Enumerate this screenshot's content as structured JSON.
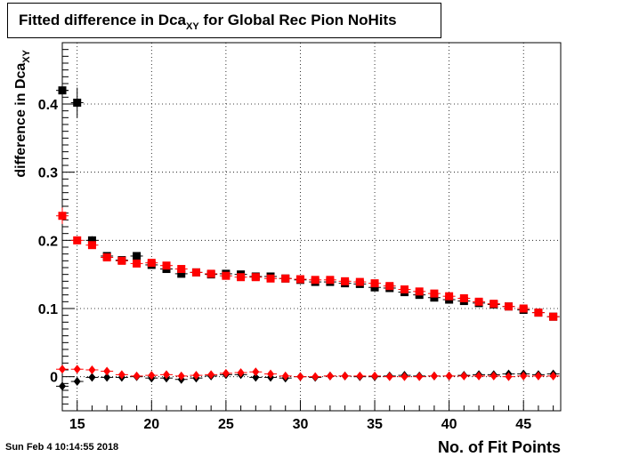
{
  "title": {
    "main": "Fitted difference in Dca",
    "sub": "XY",
    "rest": " for Global Rec Pion NoHits"
  },
  "timestamp": "Sun Feb  4 10:14:55 2018",
  "chart_data": {
    "type": "scatter",
    "xlabel": "No. of Fit Points",
    "ylabel": {
      "main": "difference in Dca",
      "sub": "XY"
    },
    "xlim": [
      14,
      47.5
    ],
    "ylim": [
      -0.05,
      0.49
    ],
    "grid": true,
    "x_ticks": [
      15,
      20,
      25,
      30,
      35,
      40,
      45
    ],
    "y_ticks": [
      0,
      0.1,
      0.2,
      0.3,
      0.4
    ],
    "y_tick_labels": [
      "0",
      "0.1",
      "0.2",
      "0.3",
      "0.4"
    ],
    "series": [
      {
        "marker": "square",
        "color": "#000000",
        "x": [
          14,
          15,
          16,
          17,
          18,
          19,
          20,
          21,
          22,
          23,
          24,
          25,
          26,
          27,
          28,
          29,
          30,
          31,
          32,
          33,
          34,
          35,
          36,
          37,
          38,
          39,
          40,
          41,
          42,
          43,
          44,
          45,
          46,
          47
        ],
        "y": [
          0.42,
          0.402,
          0.2,
          0.177,
          0.171,
          0.177,
          0.164,
          0.158,
          0.151,
          0.153,
          0.15,
          0.151,
          0.15,
          0.147,
          0.147,
          0.144,
          0.142,
          0.139,
          0.139,
          0.137,
          0.136,
          0.131,
          0.13,
          0.124,
          0.12,
          0.116,
          0.113,
          0.111,
          0.108,
          0.106,
          0.103,
          0.098,
          0.094,
          0.088
        ],
        "yerr": [
          0.02,
          0.022,
          0.006,
          0.005,
          0.005,
          0.005,
          0.004,
          0.004,
          0.004,
          0.004,
          0.004,
          0.004,
          0.004,
          0.004,
          0.004,
          0.004,
          0.004,
          0.004,
          0.004,
          0.004,
          0.004,
          0.004,
          0.004,
          0.004,
          0.004,
          0.004,
          0.004,
          0.004,
          0.004,
          0.004,
          0.004,
          0.004,
          0.004,
          0.004
        ]
      },
      {
        "marker": "square",
        "color": "#ff0000",
        "x": [
          14,
          15,
          16,
          17,
          18,
          19,
          20,
          21,
          22,
          23,
          24,
          25,
          26,
          27,
          28,
          29,
          30,
          31,
          32,
          33,
          34,
          35,
          36,
          37,
          38,
          39,
          40,
          41,
          42,
          43,
          44,
          45,
          46,
          47
        ],
        "y": [
          0.236,
          0.2,
          0.193,
          0.175,
          0.17,
          0.166,
          0.167,
          0.163,
          0.158,
          0.153,
          0.151,
          0.148,
          0.146,
          0.146,
          0.144,
          0.144,
          0.143,
          0.142,
          0.142,
          0.14,
          0.139,
          0.137,
          0.133,
          0.128,
          0.125,
          0.122,
          0.118,
          0.115,
          0.11,
          0.107,
          0.103,
          0.1,
          0.094,
          0.088
        ],
        "yerr": [
          0.012,
          0.006,
          0.005,
          0.004,
          0.004,
          0.004,
          0.004,
          0.004,
          0.004,
          0.004,
          0.004,
          0.004,
          0.004,
          0.004,
          0.004,
          0.004,
          0.004,
          0.004,
          0.004,
          0.004,
          0.004,
          0.004,
          0.004,
          0.004,
          0.004,
          0.004,
          0.004,
          0.004,
          0.004,
          0.004,
          0.004,
          0.004,
          0.004,
          0.004
        ]
      },
      {
        "marker": "diamond",
        "color": "#000000",
        "x": [
          14,
          15,
          16,
          17,
          18,
          19,
          20,
          21,
          22,
          23,
          24,
          25,
          26,
          27,
          28,
          29,
          30,
          31,
          32,
          33,
          34,
          35,
          36,
          37,
          38,
          39,
          40,
          41,
          42,
          43,
          44,
          45,
          46,
          47
        ],
        "y": [
          -0.014,
          -0.007,
          -0.001,
          -0.001,
          -0.001,
          0.0,
          -0.002,
          -0.002,
          -0.004,
          -0.002,
          0.001,
          0.003,
          0.003,
          -0.001,
          -0.001,
          -0.002,
          0.0,
          -0.001,
          0.001,
          0.001,
          0.0,
          0.0,
          0.001,
          0.002,
          0.001,
          0.001,
          0.001,
          0.002,
          0.003,
          0.003,
          0.004,
          0.004,
          0.003,
          0.004
        ],
        "yerr": [
          0.006,
          0.004,
          0.003,
          0.002,
          0.002,
          0.002,
          0.002,
          0.002,
          0.002,
          0.002,
          0.002,
          0.002,
          0.002,
          0.002,
          0.002,
          0.002,
          0.002,
          0.002,
          0.002,
          0.002,
          0.002,
          0.002,
          0.002,
          0.002,
          0.002,
          0.002,
          0.002,
          0.002,
          0.002,
          0.002,
          0.002,
          0.002,
          0.002,
          0.002
        ]
      },
      {
        "marker": "diamond",
        "color": "#ff0000",
        "x": [
          14,
          15,
          16,
          17,
          18,
          19,
          20,
          21,
          22,
          23,
          24,
          25,
          26,
          27,
          28,
          29,
          30,
          31,
          32,
          33,
          34,
          35,
          36,
          37,
          38,
          39,
          40,
          41,
          42,
          43,
          44,
          45,
          46,
          47
        ],
        "y": [
          0.011,
          0.011,
          0.01,
          0.008,
          0.003,
          0.001,
          0.002,
          0.003,
          0.001,
          0.002,
          0.003,
          0.005,
          0.006,
          0.007,
          0.004,
          0.001,
          0.0,
          0.0,
          0.001,
          0.001,
          0.001,
          0.001,
          0.0,
          0.0,
          0.0,
          0.001,
          0.001,
          0.001,
          0.001,
          0.001,
          0.0,
          0.001,
          0.001,
          0.001
        ],
        "yerr": [
          0.003,
          0.002,
          0.002,
          0.002,
          0.002,
          0.002,
          0.002,
          0.002,
          0.002,
          0.002,
          0.002,
          0.002,
          0.002,
          0.002,
          0.002,
          0.002,
          0.002,
          0.002,
          0.002,
          0.002,
          0.002,
          0.002,
          0.002,
          0.002,
          0.002,
          0.002,
          0.002,
          0.002,
          0.002,
          0.002,
          0.002,
          0.002,
          0.002,
          0.002
        ]
      }
    ]
  }
}
